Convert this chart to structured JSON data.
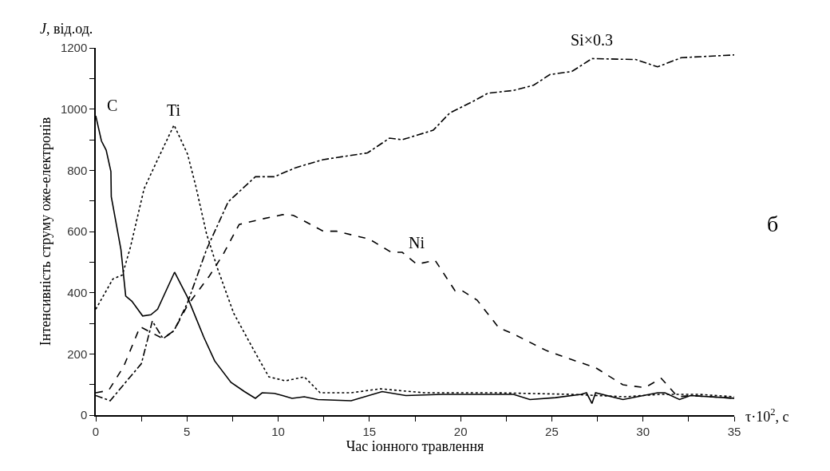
{
  "chart_data": {
    "type": "line",
    "ylabel": "Інтенсивність струму оже-електронів",
    "xlabel": "Час іонного травлення",
    "annotations": [
      "J, від.од.",
      "τ·10$^{2}$, с",
      "б"
    ],
    "xlim": [
      0,
      35
    ],
    "ylim": [
      0,
      1200
    ],
    "xticks": [
      0,
      {
        "value": 2.5,
        "label": null
      },
      5,
      {
        "value": 7.5,
        "label": null
      },
      10,
      {
        "value": 12.5,
        "label": null
      },
      15,
      {
        "value": 17.5,
        "label": null
      },
      20,
      {
        "value": 22.5,
        "label": null
      },
      25,
      {
        "value": 27.5,
        "label": null
      },
      30,
      {
        "value": 32.5,
        "label": null
      },
      35
    ],
    "yticks": [
      0,
      {
        "value": 100,
        "label": null
      },
      200,
      {
        "value": 300,
        "label": null
      },
      400,
      {
        "value": 500,
        "label": null
      },
      600,
      {
        "value": 700,
        "label": null
      },
      800,
      {
        "value": 900,
        "label": null
      },
      1000,
      {
        "value": 1100,
        "label": null
      },
      1200
    ],
    "legend": false,
    "marker": "none",
    "series": [
      {
        "name": "C",
        "color": "#000000",
        "line_style": "solid",
        "x": [
          0,
          0.31,
          0.57,
          0.83,
          0.85,
          1.38,
          1.64,
          1.98,
          2.57,
          3.02,
          3.39,
          4.32,
          5.03,
          5.92,
          6.52,
          7.41,
          8.15,
          8.75,
          9.12,
          9.79,
          10.24,
          10.76,
          11.43,
          12.17,
          14,
          15.7,
          17,
          19,
          21,
          22.9,
          23.8,
          25.2,
          26.6,
          26.9,
          27.2,
          27.4,
          28.9,
          30.8,
          31.2,
          32,
          32.6,
          35
        ],
        "values": [
          978,
          896,
          866,
          796,
          714,
          541,
          389,
          372,
          324,
          328,
          346,
          467,
          385,
          255,
          177,
          107,
          77,
          55,
          73,
          71,
          64,
          55,
          60,
          51,
          47,
          77,
          64,
          68,
          68,
          68,
          51,
          57,
          68,
          73,
          38,
          73,
          51,
          73,
          73,
          51,
          64,
          55
        ]
      },
      {
        "name": "Ti",
        "color": "#000000",
        "line_style": "dotted",
        "x": [
          0,
          0.94,
          1.46,
          1.9,
          2.65,
          3.39,
          4.29,
          5.03,
          5.48,
          6.07,
          6.67,
          7.56,
          8.75,
          9.49,
          10.4,
          11.43,
          12.3,
          14,
          15.6,
          18,
          22,
          26,
          29,
          31,
          33,
          35
        ],
        "values": [
          346,
          445,
          458,
          549,
          740,
          835,
          948,
          853,
          749,
          593,
          480,
          333,
          203,
          125,
          112,
          125,
          73,
          73,
          86,
          73,
          73,
          68,
          60,
          68,
          68,
          60
        ]
      },
      {
        "name": "Ni",
        "color": "#000000",
        "line_style": "dashed",
        "x": [
          0,
          0.71,
          1.53,
          2.43,
          3.1,
          3.69,
          4.29,
          5.03,
          6.22,
          6.96,
          7.86,
          9.05,
          10.24,
          10.83,
          12.47,
          13.2,
          15,
          16.2,
          16.8,
          17.6,
          18.6,
          19.7,
          20.1,
          20.9,
          22.1,
          22.8,
          24.7,
          26.1,
          27.4,
          28.9,
          30.1,
          31,
          31.9,
          32.6,
          35
        ],
        "values": [
          73,
          81,
          159,
          289,
          268,
          250,
          276,
          359,
          454,
          523,
          623,
          640,
          655,
          653,
          601,
          601,
          575,
          532,
          532,
          493,
          506,
          406,
          406,
          376,
          285,
          268,
          211,
          181,
          155,
          99,
          90,
          120,
          60,
          64,
          55
        ]
      },
      {
        "name": "Si×0.3",
        "color": "#000000",
        "line_style": "dashdot",
        "x": [
          0,
          0.79,
          1.76,
          2.5,
          3.1,
          3.69,
          4.29,
          5.03,
          6.07,
          7.26,
          8.75,
          9.79,
          10.98,
          12.47,
          14.9,
          16.1,
          16.8,
          18.5,
          19.4,
          20.7,
          21.5,
          22.9,
          24,
          24.9,
          26.1,
          27.2,
          29.6,
          30.8,
          32.1,
          35
        ],
        "values": [
          64,
          47,
          116,
          168,
          307,
          250,
          276,
          367,
          541,
          697,
          779,
          779,
          809,
          835,
          857,
          905,
          900,
          931,
          987,
          1026,
          1052,
          1061,
          1078,
          1113,
          1123,
          1165,
          1162,
          1138,
          1168,
          1177
        ]
      }
    ]
  }
}
